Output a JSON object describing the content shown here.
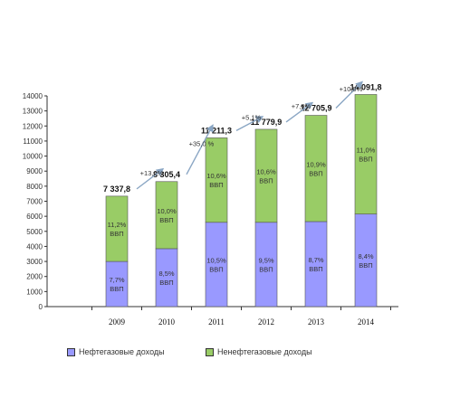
{
  "chart_data": {
    "type": "bar",
    "stacked": true,
    "categories": [
      "2009",
      "2010",
      "2011",
      "2012",
      "2013",
      "2014"
    ],
    "series": [
      {
        "name": "Нефтегазовые доходы",
        "color": "#9999ff",
        "values": [
          3000,
          3850,
          5600,
          5600,
          5650,
          6150
        ],
        "labels": [
          "7,7%\nВВП",
          "8,5%\nВВП",
          "10,5%\nВВП",
          "9,5%\nВВП",
          "8,7%\nВВП",
          "8,4%\nВВП"
        ]
      },
      {
        "name": "Ненефтегазовые доходы",
        "color": "#99cc66",
        "values": [
          4337.8,
          4455.4,
          5611.3,
          6179.9,
          7055.9,
          7941.8
        ],
        "labels": [
          "11,2%\nВВП",
          "10,0%\nВВП",
          "10,6%\nВВП",
          "10,6%\nВВП",
          "10,9%\nВВП",
          "11,0%\nВВП"
        ]
      }
    ],
    "totals": [
      "7 337,8",
      "8 305,4",
      "11 211,3",
      "11 779,9",
      "12 705,9",
      "14 091,8"
    ],
    "total_values": [
      7337.8,
      8305.4,
      11211.3,
      11779.9,
      12705.9,
      14091.8
    ],
    "growth_labels": [
      "+13,2%",
      "+35,0 %",
      "+5,1%",
      "+7,9%",
      "+10,9%"
    ],
    "y_ticks": [
      "0",
      "1000",
      "2000",
      "3000",
      "4000",
      "5000",
      "6000",
      "7000",
      "8000",
      "9000",
      "10000",
      "11000",
      "12000",
      "13000",
      "14000"
    ],
    "ylim": [
      0,
      14000
    ],
    "grid": false,
    "legend_position": "bottom"
  }
}
